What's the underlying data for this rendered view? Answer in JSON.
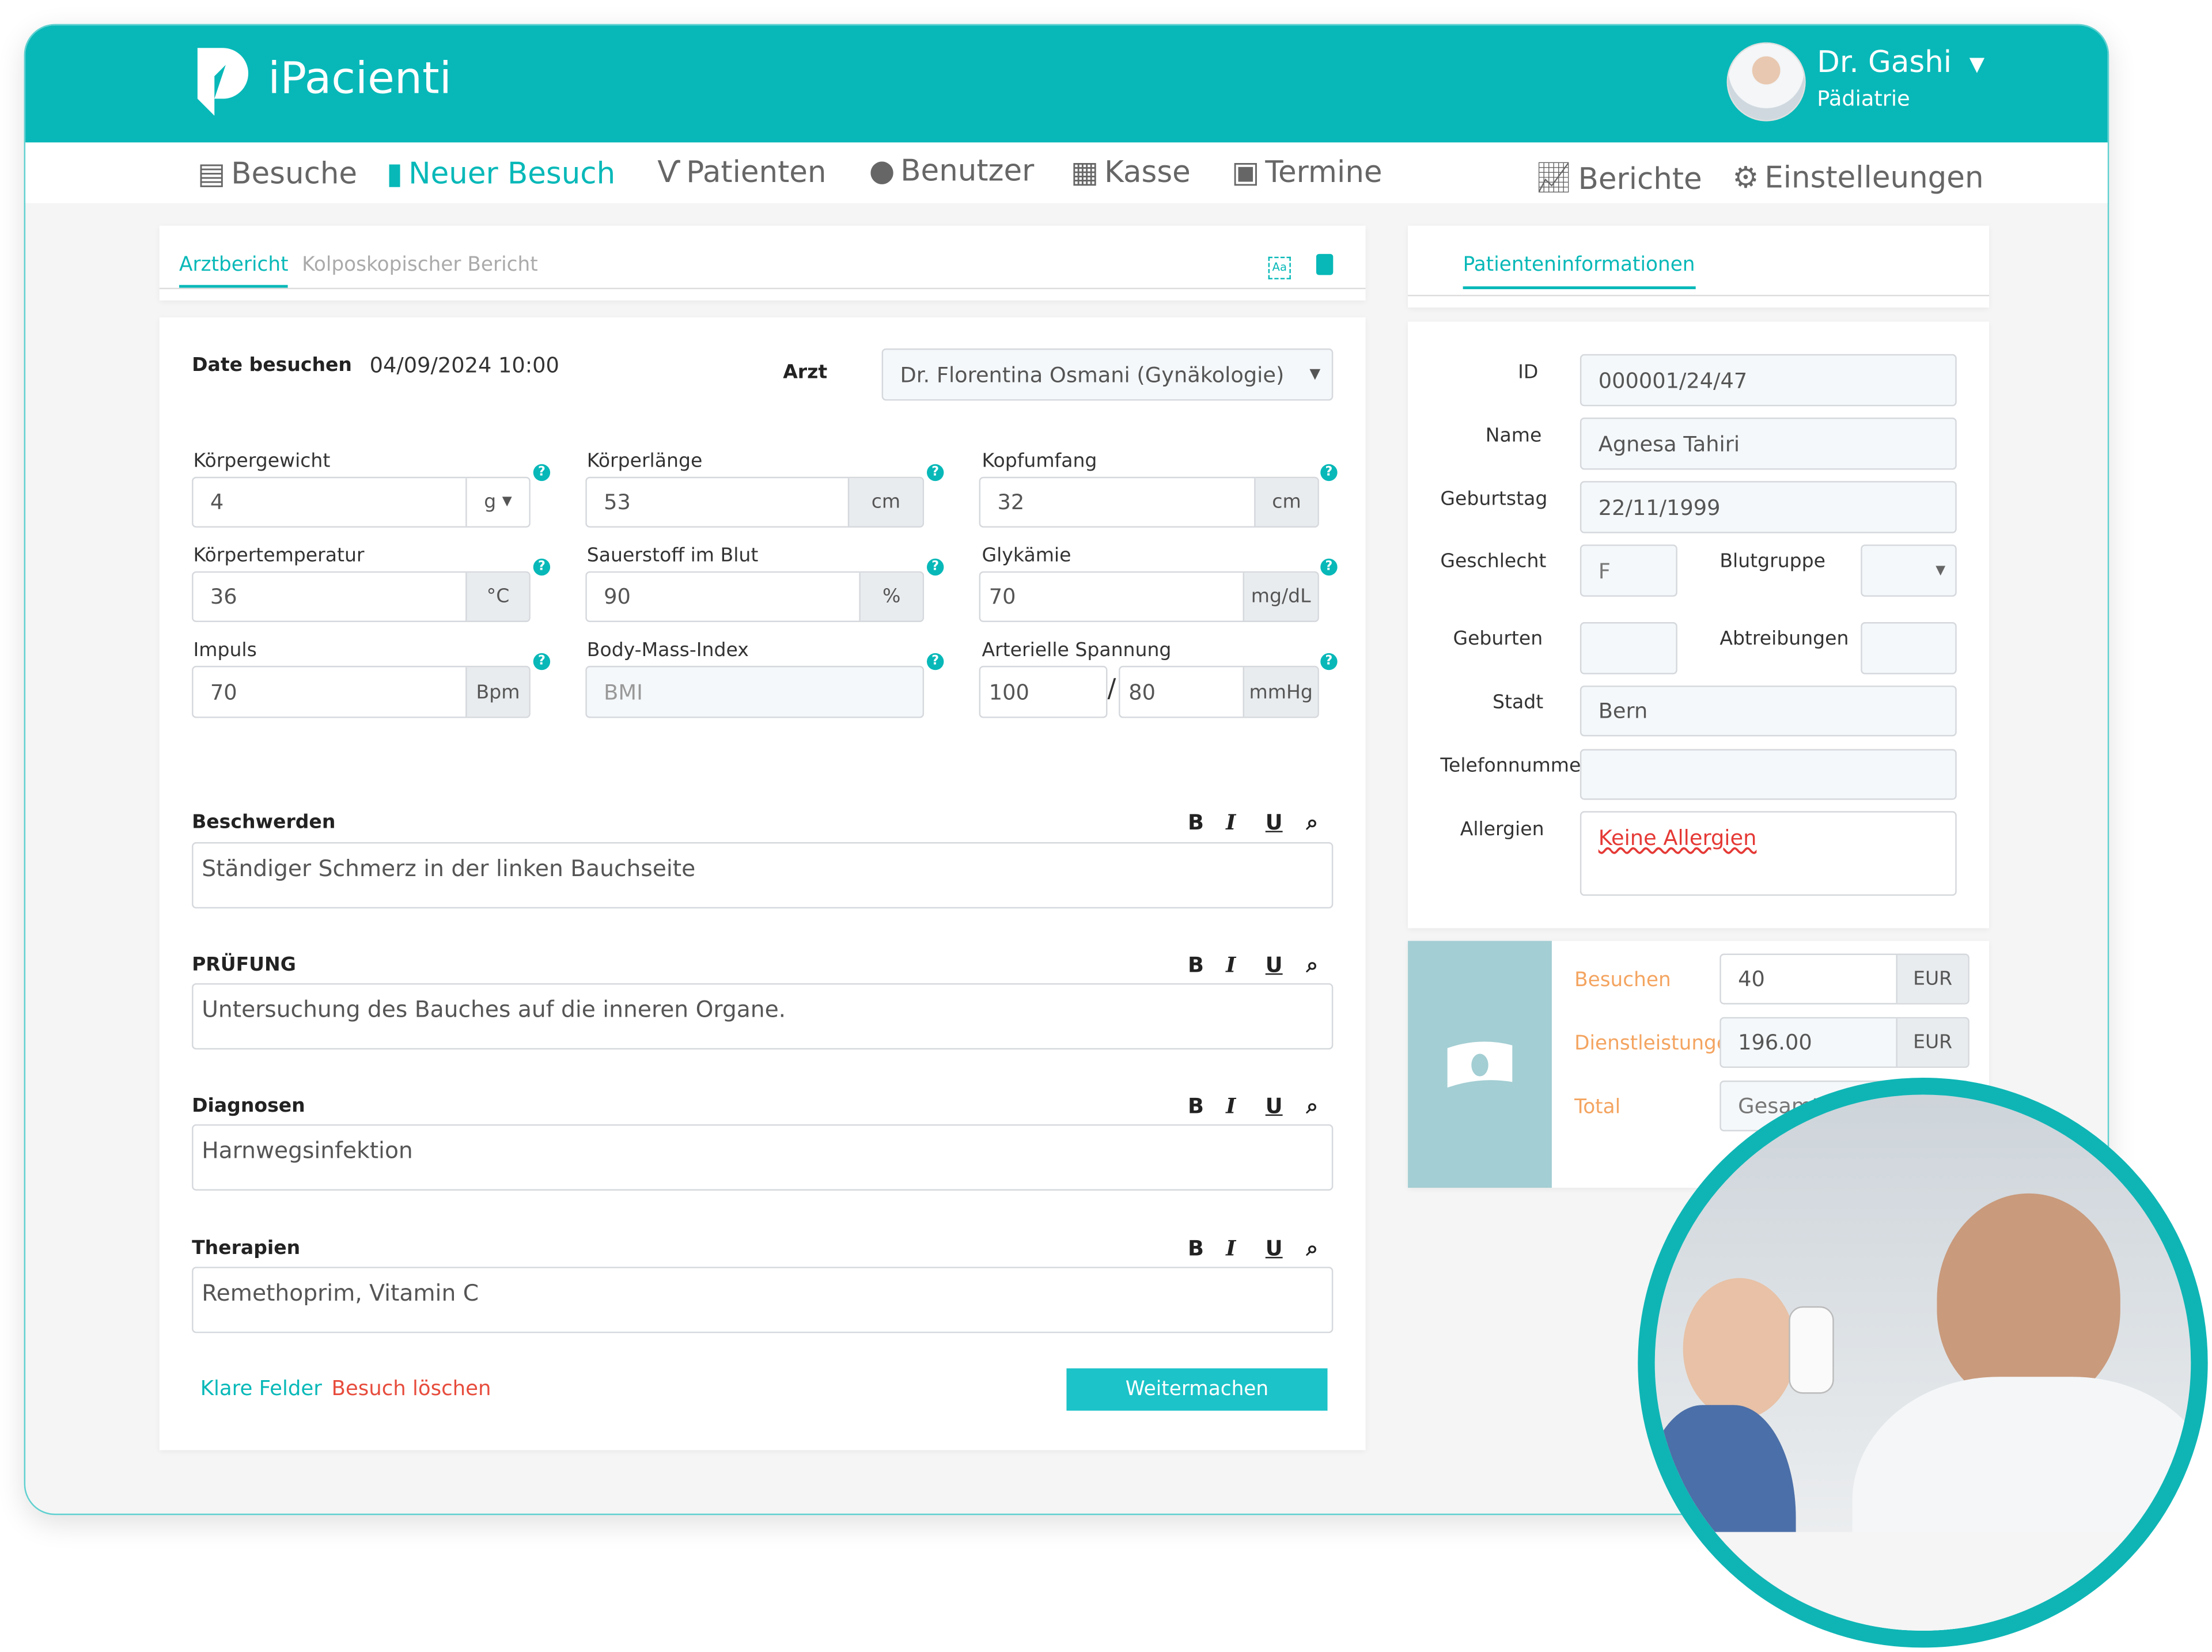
{
  "app": {
    "name": "iPacienti",
    "brand_color": "#08b8b8"
  },
  "user": {
    "name": "Dr. Gashi",
    "department": "Pädiatrie"
  },
  "nav": {
    "items": [
      {
        "label": "Besuche",
        "icon": "clipboard-icon"
      },
      {
        "label": "Neuer Besuch",
        "icon": "file-medical-icon",
        "active": true
      },
      {
        "label": "Patienten",
        "icon": "stethoscope-icon"
      },
      {
        "label": "Benutzer",
        "icon": "user-md-icon"
      },
      {
        "label": "Kasse",
        "icon": "cash-register-icon"
      },
      {
        "label": "Termine",
        "icon": "calendar-plus-icon"
      }
    ],
    "right": [
      {
        "label": "Berichte",
        "icon": "chart-line-icon"
      },
      {
        "label": "Einstelleungen",
        "icon": "gear-icon"
      }
    ]
  },
  "report": {
    "tabs": [
      "Arztbericht",
      "Kolposkopischer Bericht"
    ],
    "date_label": "Date besuchen",
    "date_value": "04/09/2024 10:00",
    "doctor_label": "Arzt",
    "doctor_value": "Dr. Florentina Osmani (Gynäkologie)",
    "vitals": {
      "weight": {
        "label": "Körpergewicht",
        "value": "4",
        "unit": "g"
      },
      "length": {
        "label": "Körperlänge",
        "value": "53",
        "unit": "cm"
      },
      "head": {
        "label": "Kopfumfang",
        "value": "32",
        "unit": "cm"
      },
      "temp": {
        "label": "Körpertemperatur",
        "value": "36",
        "unit": "°C"
      },
      "oxygen": {
        "label": "Sauerstoff im Blut",
        "value": "90",
        "unit": "%"
      },
      "glyc": {
        "label": "Glykämie",
        "value": "70",
        "unit": "mg/dL"
      },
      "pulse": {
        "label": "Impuls",
        "value": "70",
        "unit": "Bpm"
      },
      "bmi": {
        "label": "Body-Mass-Index",
        "placeholder": "BMI"
      },
      "bp": {
        "label": "Arterielle Spannung",
        "systolic": "100",
        "diastolic": "80",
        "unit": "mmHg",
        "separator": "/"
      }
    },
    "help_glyph": "?",
    "toolbar": {
      "bold": "B",
      "italic": "I",
      "underline": "U",
      "search": "⌕"
    },
    "sections": [
      {
        "label": "Beschwerden",
        "value": "Ständiger Schmerz in der linken Bauchseite"
      },
      {
        "label": "PRÜFUNG",
        "value": "Untersuchung des Bauches auf die inneren Organe."
      },
      {
        "label": "Diagnosen",
        "value": "Harnwegsinfektion"
      },
      {
        "label": "Therapien",
        "value": "Remethoprim, Vitamin C"
      }
    ],
    "clear_label": "Klare Felder",
    "delete_label": "Besuch löschen",
    "continue_label": "Weitermachen"
  },
  "patient": {
    "tab": "Patienteninformationen",
    "id_label": "ID",
    "id": "000001/24/47",
    "name_label": "Name",
    "name": "Agnesa Tahiri",
    "birthday_label": "Geburtstag",
    "birthday": "22/11/1999",
    "gender_label": "Geschlecht",
    "gender": "F",
    "blood_label": "Blutgruppe",
    "blood": "",
    "births_label": "Geburten",
    "births": "",
    "abortions_label": "Abtreibungen",
    "abortions": "",
    "city_label": "Stadt",
    "city": "Bern",
    "phone_label": "Telefonnumme",
    "phone": "",
    "allergies_label": "Allergien",
    "allergies": "Keine Allergien"
  },
  "payment": {
    "visits_label": "Besuchen",
    "visits": "40",
    "services_label": "Dienstleistunge",
    "services": "196.00",
    "total_label": "Total",
    "total_placeholder": "Gesamt",
    "currency": "EUR"
  }
}
